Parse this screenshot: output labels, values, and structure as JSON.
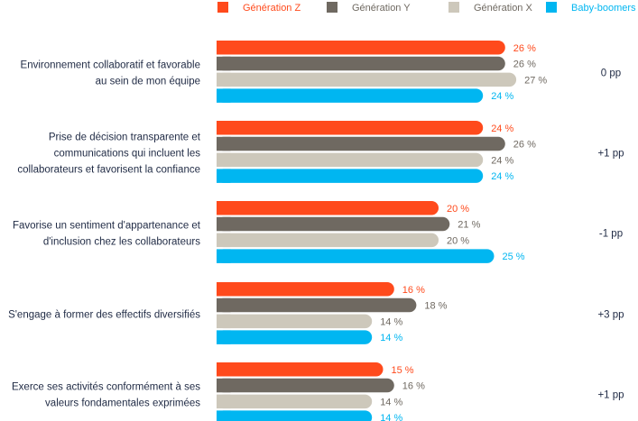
{
  "chart_data": {
    "type": "bar",
    "orientation": "horizontal",
    "value_suffix": " %",
    "categories": [
      [
        "Environnement collaboratif et favorable",
        "au sein de mon équipe"
      ],
      [
        "Prise de décision transparente et",
        "communications qui incluent les",
        "collaborateurs et favorisent la confiance"
      ],
      [
        "Favorise un sentiment d'appartenance et",
        "d'inclusion chez les collaborateurs"
      ],
      [
        "S'engage à former des effectifs diversifiés"
      ],
      [
        "Exerce ses activités conformément à ses",
        "valeurs fondamentales exprimées"
      ]
    ],
    "series": [
      {
        "name": "Génération Z",
        "color": "#ff4a1c",
        "label_color": "#ff4a1c",
        "values": [
          26,
          24,
          20,
          16,
          15
        ]
      },
      {
        "name": "Génération Y",
        "color": "#6f6961",
        "label_color": "#6f6961",
        "values": [
          26,
          26,
          21,
          18,
          16
        ]
      },
      {
        "name": "Génération X",
        "color": "#cdc8bb",
        "label_color": "#6f6961",
        "values": [
          27,
          24,
          20,
          14,
          14
        ]
      },
      {
        "name": "Baby-boomers",
        "color": "#00b6f1",
        "label_color": "#00b6f1",
        "values": [
          24,
          24,
          25,
          14,
          14
        ]
      }
    ],
    "deltas": [
      "0 pp",
      "+1 pp",
      "-1 pp",
      "+3 pp",
      "+1 pp"
    ],
    "legend_position": "top",
    "grid": false,
    "xlim": [
      0,
      27
    ]
  }
}
